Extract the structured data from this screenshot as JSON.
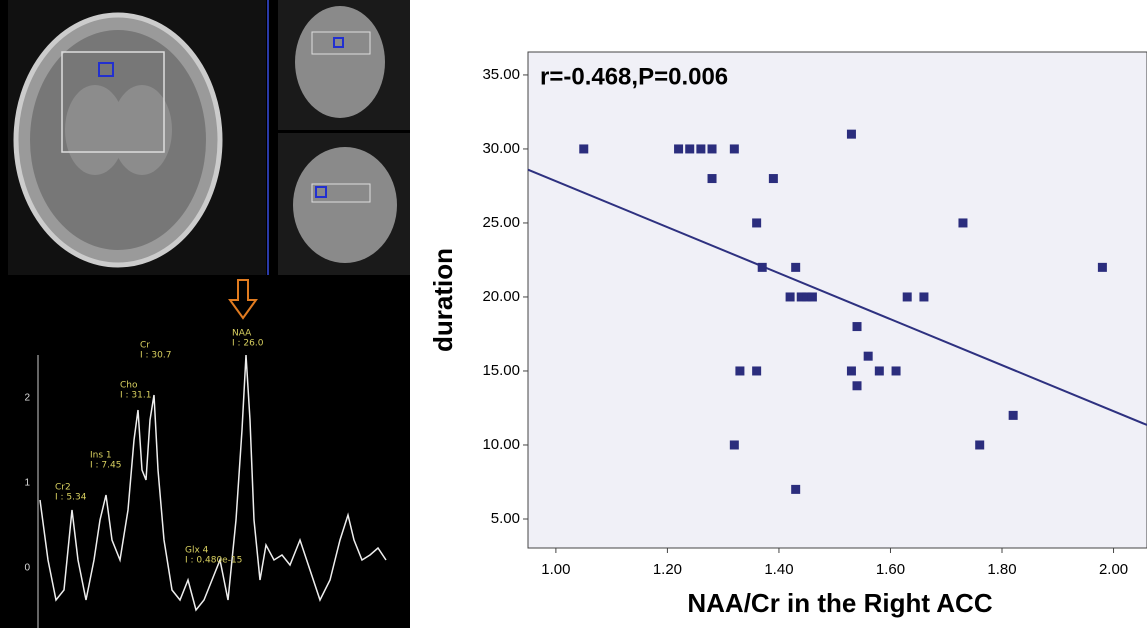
{
  "chart_data": {
    "type": "scatter",
    "annotation": "r=-0.468,P=0.006",
    "xlabel": "NAA/Cr in the Right ACC",
    "ylabel": "duration",
    "x": [
      1.05,
      1.22,
      1.24,
      1.26,
      1.28,
      1.32,
      1.28,
      1.39,
      1.53,
      1.36,
      1.37,
      1.43,
      1.42,
      1.44,
      1.45,
      1.46,
      1.73,
      1.63,
      1.66,
      1.98,
      1.54,
      1.56,
      1.33,
      1.36,
      1.53,
      1.58,
      1.61,
      1.54,
      1.32,
      1.76,
      1.82,
      1.43
    ],
    "values": [
      30,
      30,
      30,
      30,
      30,
      30,
      28,
      28,
      31,
      25,
      22,
      22,
      20,
      20,
      20,
      20,
      25,
      20,
      20,
      22,
      18,
      16,
      15,
      15,
      15,
      15,
      15,
      14,
      10,
      10,
      12,
      7
    ],
    "color": "#2b2d7d",
    "fit": {
      "x": [
        0.95,
        2.06
      ],
      "y": [
        28.6,
        11.35
      ],
      "color": "#2e3180"
    },
    "xlim": [
      0.95,
      2.06
    ],
    "ylim": [
      3.04,
      36.55
    ],
    "xticks": [
      {
        "value": 1.0,
        "label": "1.00"
      },
      {
        "value": 1.2,
        "label": "1.20"
      },
      {
        "value": 1.4,
        "label": "1.40"
      },
      {
        "value": 1.6,
        "label": "1.60"
      },
      {
        "value": 1.8,
        "label": "1.80"
      },
      {
        "value": 2.0,
        "label": "2.00"
      }
    ],
    "yticks": [
      {
        "value": 5,
        "label": "5.00"
      },
      {
        "value": 10,
        "label": "10.00"
      },
      {
        "value": 15,
        "label": "15.00"
      },
      {
        "value": 20,
        "label": "20.00"
      },
      {
        "value": 25,
        "label": "25.00"
      },
      {
        "value": 30,
        "label": "30.00"
      },
      {
        "value": 35,
        "label": "35.00"
      }
    ],
    "grid": false
  },
  "spectrum": {
    "peaks": [
      {
        "name": "Cr2",
        "label": "I : 5.34"
      },
      {
        "name": "Ins 1",
        "label": "I : 7.45"
      },
      {
        "name": "Cho",
        "label": "I : 31.1"
      },
      {
        "name": "Cr",
        "label": "I : 30.7"
      },
      {
        "name": "NAA",
        "label": "I : 26.0"
      },
      {
        "name": "Glx 4",
        "label": "I : 0.480e-15"
      }
    ],
    "yticks": [
      2,
      1,
      0
    ]
  }
}
